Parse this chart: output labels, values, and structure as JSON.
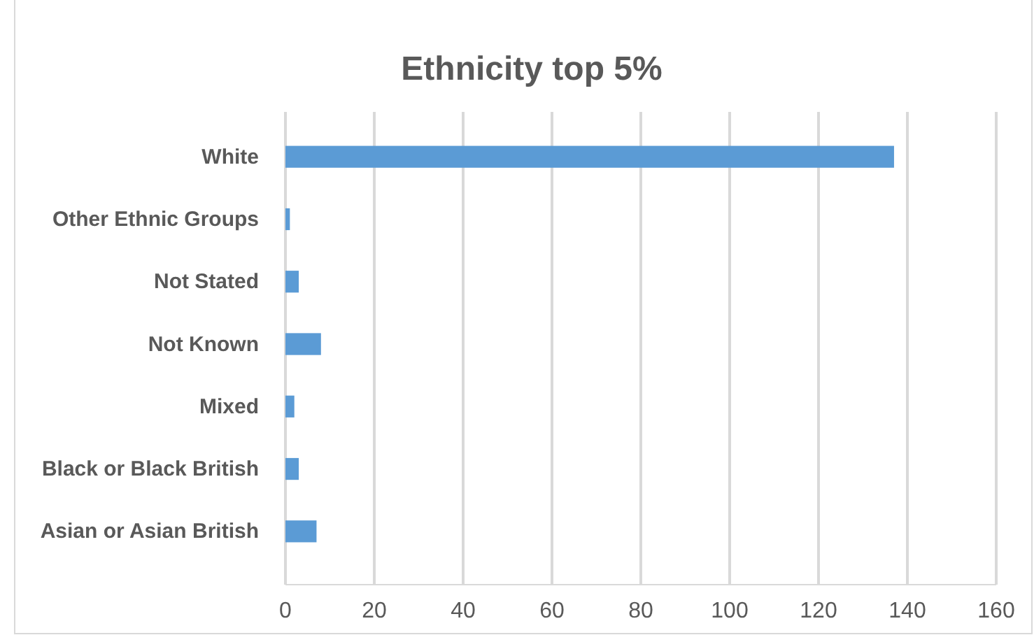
{
  "chart_data": {
    "type": "bar",
    "orientation": "horizontal",
    "title": "Ethnicity top 5%",
    "categories": [
      "White",
      "Other Ethnic Groups",
      "Not Stated",
      "Not Known",
      "Mixed",
      "Black or Black British",
      "Asian or Asian British"
    ],
    "values": [
      137,
      1,
      3,
      8,
      2,
      3,
      7
    ],
    "color": "#5b9bd5",
    "xlim": [
      0,
      160
    ],
    "xticks": [
      0,
      20,
      40,
      60,
      80,
      100,
      120,
      140,
      160
    ],
    "grid": "x"
  }
}
